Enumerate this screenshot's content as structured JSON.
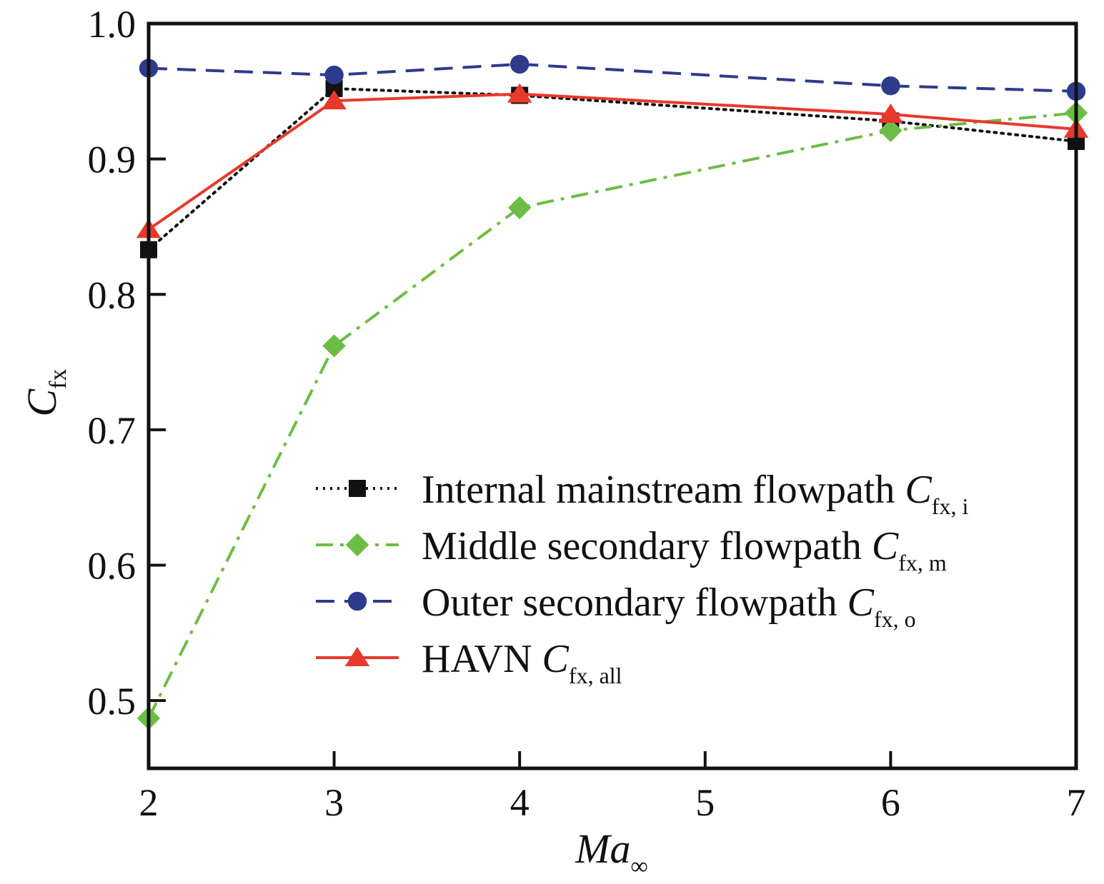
{
  "chart_data": {
    "type": "line",
    "title": "",
    "xlabel": "Ma",
    "xlabel_sub": "∞",
    "ylabel": "C",
    "ylabel_sub": "fx",
    "xlim": [
      2,
      7
    ],
    "ylim": [
      0.45,
      1.0
    ],
    "x_ticks": [
      2,
      3,
      4,
      5,
      6,
      7
    ],
    "x_tick_labels": [
      "2",
      "3",
      "4",
      "5",
      "6",
      "7"
    ],
    "y_ticks": [
      0.5,
      0.6,
      0.7,
      0.8,
      0.9,
      1.0
    ],
    "y_tick_labels": [
      "0.5",
      "0.6",
      "0.7",
      "0.8",
      "0.9",
      "1.0"
    ],
    "grid": false,
    "legend_position": "center-right",
    "x": [
      2,
      3,
      4,
      6,
      7
    ],
    "series": [
      {
        "name": "Internal mainstream flowpath",
        "symbol": "C",
        "subscript": "fx, i",
        "values": [
          0.833,
          0.952,
          0.947,
          0.928,
          0.913
        ],
        "color": "#111111",
        "line_style": "dotted",
        "marker": "square"
      },
      {
        "name": "Middle secondary flowpath",
        "symbol": "C",
        "subscript": "fx, m",
        "values": [
          0.487,
          0.762,
          0.864,
          0.921,
          0.934
        ],
        "color": "#6cbd45",
        "line_style": "dashdot",
        "marker": "diamond"
      },
      {
        "name": "Outer secondary flowpath",
        "symbol": "C",
        "subscript": "fx, o",
        "values": [
          0.967,
          0.962,
          0.97,
          0.954,
          0.95
        ],
        "color": "#2e3a8c",
        "line_style": "dashed",
        "marker": "circle"
      },
      {
        "name": "HAVN",
        "symbol": "C",
        "subscript": "fx, all",
        "values": [
          0.848,
          0.943,
          0.948,
          0.933,
          0.922
        ],
        "color": "#e8392b",
        "line_style": "solid",
        "marker": "triangle"
      }
    ]
  }
}
